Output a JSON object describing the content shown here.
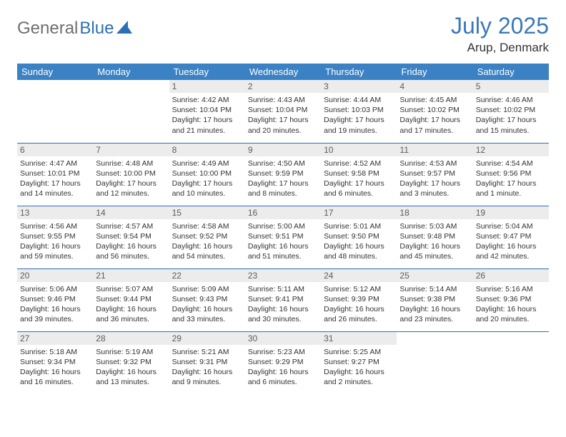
{
  "brand": {
    "part1": "General",
    "part2": "Blue"
  },
  "title": {
    "month": "July 2025",
    "location": "Arup, Denmark"
  },
  "style": {
    "header_bg": "#3b82c4",
    "header_fg": "#ffffff",
    "accent": "#2d6fb5",
    "daynum_bg": "#ececec",
    "daynum_fg": "#5d5d5d",
    "body_fg": "#333333",
    "title_color": "#3b79b7",
    "page_bg": "#ffffff",
    "font_family": "Arial, Helvetica, sans-serif",
    "title_fontsize_pt": 24,
    "header_fontsize_pt": 10,
    "cell_fontsize_pt": 8
  },
  "weekdays": [
    "Sunday",
    "Monday",
    "Tuesday",
    "Wednesday",
    "Thursday",
    "Friday",
    "Saturday"
  ],
  "weeks": [
    [
      {
        "n": "",
        "l1": "",
        "l2": "",
        "l3": "",
        "l4": ""
      },
      {
        "n": "",
        "l1": "",
        "l2": "",
        "l3": "",
        "l4": ""
      },
      {
        "n": "1",
        "l1": "Sunrise: 4:42 AM",
        "l2": "Sunset: 10:04 PM",
        "l3": "Daylight: 17 hours",
        "l4": "and 21 minutes."
      },
      {
        "n": "2",
        "l1": "Sunrise: 4:43 AM",
        "l2": "Sunset: 10:04 PM",
        "l3": "Daylight: 17 hours",
        "l4": "and 20 minutes."
      },
      {
        "n": "3",
        "l1": "Sunrise: 4:44 AM",
        "l2": "Sunset: 10:03 PM",
        "l3": "Daylight: 17 hours",
        "l4": "and 19 minutes."
      },
      {
        "n": "4",
        "l1": "Sunrise: 4:45 AM",
        "l2": "Sunset: 10:02 PM",
        "l3": "Daylight: 17 hours",
        "l4": "and 17 minutes."
      },
      {
        "n": "5",
        "l1": "Sunrise: 4:46 AM",
        "l2": "Sunset: 10:02 PM",
        "l3": "Daylight: 17 hours",
        "l4": "and 15 minutes."
      }
    ],
    [
      {
        "n": "6",
        "l1": "Sunrise: 4:47 AM",
        "l2": "Sunset: 10:01 PM",
        "l3": "Daylight: 17 hours",
        "l4": "and 14 minutes."
      },
      {
        "n": "7",
        "l1": "Sunrise: 4:48 AM",
        "l2": "Sunset: 10:00 PM",
        "l3": "Daylight: 17 hours",
        "l4": "and 12 minutes."
      },
      {
        "n": "8",
        "l1": "Sunrise: 4:49 AM",
        "l2": "Sunset: 10:00 PM",
        "l3": "Daylight: 17 hours",
        "l4": "and 10 minutes."
      },
      {
        "n": "9",
        "l1": "Sunrise: 4:50 AM",
        "l2": "Sunset: 9:59 PM",
        "l3": "Daylight: 17 hours",
        "l4": "and 8 minutes."
      },
      {
        "n": "10",
        "l1": "Sunrise: 4:52 AM",
        "l2": "Sunset: 9:58 PM",
        "l3": "Daylight: 17 hours",
        "l4": "and 6 minutes."
      },
      {
        "n": "11",
        "l1": "Sunrise: 4:53 AM",
        "l2": "Sunset: 9:57 PM",
        "l3": "Daylight: 17 hours",
        "l4": "and 3 minutes."
      },
      {
        "n": "12",
        "l1": "Sunrise: 4:54 AM",
        "l2": "Sunset: 9:56 PM",
        "l3": "Daylight: 17 hours",
        "l4": "and 1 minute."
      }
    ],
    [
      {
        "n": "13",
        "l1": "Sunrise: 4:56 AM",
        "l2": "Sunset: 9:55 PM",
        "l3": "Daylight: 16 hours",
        "l4": "and 59 minutes."
      },
      {
        "n": "14",
        "l1": "Sunrise: 4:57 AM",
        "l2": "Sunset: 9:54 PM",
        "l3": "Daylight: 16 hours",
        "l4": "and 56 minutes."
      },
      {
        "n": "15",
        "l1": "Sunrise: 4:58 AM",
        "l2": "Sunset: 9:52 PM",
        "l3": "Daylight: 16 hours",
        "l4": "and 54 minutes."
      },
      {
        "n": "16",
        "l1": "Sunrise: 5:00 AM",
        "l2": "Sunset: 9:51 PM",
        "l3": "Daylight: 16 hours",
        "l4": "and 51 minutes."
      },
      {
        "n": "17",
        "l1": "Sunrise: 5:01 AM",
        "l2": "Sunset: 9:50 PM",
        "l3": "Daylight: 16 hours",
        "l4": "and 48 minutes."
      },
      {
        "n": "18",
        "l1": "Sunrise: 5:03 AM",
        "l2": "Sunset: 9:48 PM",
        "l3": "Daylight: 16 hours",
        "l4": "and 45 minutes."
      },
      {
        "n": "19",
        "l1": "Sunrise: 5:04 AM",
        "l2": "Sunset: 9:47 PM",
        "l3": "Daylight: 16 hours",
        "l4": "and 42 minutes."
      }
    ],
    [
      {
        "n": "20",
        "l1": "Sunrise: 5:06 AM",
        "l2": "Sunset: 9:46 PM",
        "l3": "Daylight: 16 hours",
        "l4": "and 39 minutes."
      },
      {
        "n": "21",
        "l1": "Sunrise: 5:07 AM",
        "l2": "Sunset: 9:44 PM",
        "l3": "Daylight: 16 hours",
        "l4": "and 36 minutes."
      },
      {
        "n": "22",
        "l1": "Sunrise: 5:09 AM",
        "l2": "Sunset: 9:43 PM",
        "l3": "Daylight: 16 hours",
        "l4": "and 33 minutes."
      },
      {
        "n": "23",
        "l1": "Sunrise: 5:11 AM",
        "l2": "Sunset: 9:41 PM",
        "l3": "Daylight: 16 hours",
        "l4": "and 30 minutes."
      },
      {
        "n": "24",
        "l1": "Sunrise: 5:12 AM",
        "l2": "Sunset: 9:39 PM",
        "l3": "Daylight: 16 hours",
        "l4": "and 26 minutes."
      },
      {
        "n": "25",
        "l1": "Sunrise: 5:14 AM",
        "l2": "Sunset: 9:38 PM",
        "l3": "Daylight: 16 hours",
        "l4": "and 23 minutes."
      },
      {
        "n": "26",
        "l1": "Sunrise: 5:16 AM",
        "l2": "Sunset: 9:36 PM",
        "l3": "Daylight: 16 hours",
        "l4": "and 20 minutes."
      }
    ],
    [
      {
        "n": "27",
        "l1": "Sunrise: 5:18 AM",
        "l2": "Sunset: 9:34 PM",
        "l3": "Daylight: 16 hours",
        "l4": "and 16 minutes."
      },
      {
        "n": "28",
        "l1": "Sunrise: 5:19 AM",
        "l2": "Sunset: 9:32 PM",
        "l3": "Daylight: 16 hours",
        "l4": "and 13 minutes."
      },
      {
        "n": "29",
        "l1": "Sunrise: 5:21 AM",
        "l2": "Sunset: 9:31 PM",
        "l3": "Daylight: 16 hours",
        "l4": "and 9 minutes."
      },
      {
        "n": "30",
        "l1": "Sunrise: 5:23 AM",
        "l2": "Sunset: 9:29 PM",
        "l3": "Daylight: 16 hours",
        "l4": "and 6 minutes."
      },
      {
        "n": "31",
        "l1": "Sunrise: 5:25 AM",
        "l2": "Sunset: 9:27 PM",
        "l3": "Daylight: 16 hours",
        "l4": "and 2 minutes."
      },
      {
        "n": "",
        "l1": "",
        "l2": "",
        "l3": "",
        "l4": ""
      },
      {
        "n": "",
        "l1": "",
        "l2": "",
        "l3": "",
        "l4": ""
      }
    ]
  ]
}
